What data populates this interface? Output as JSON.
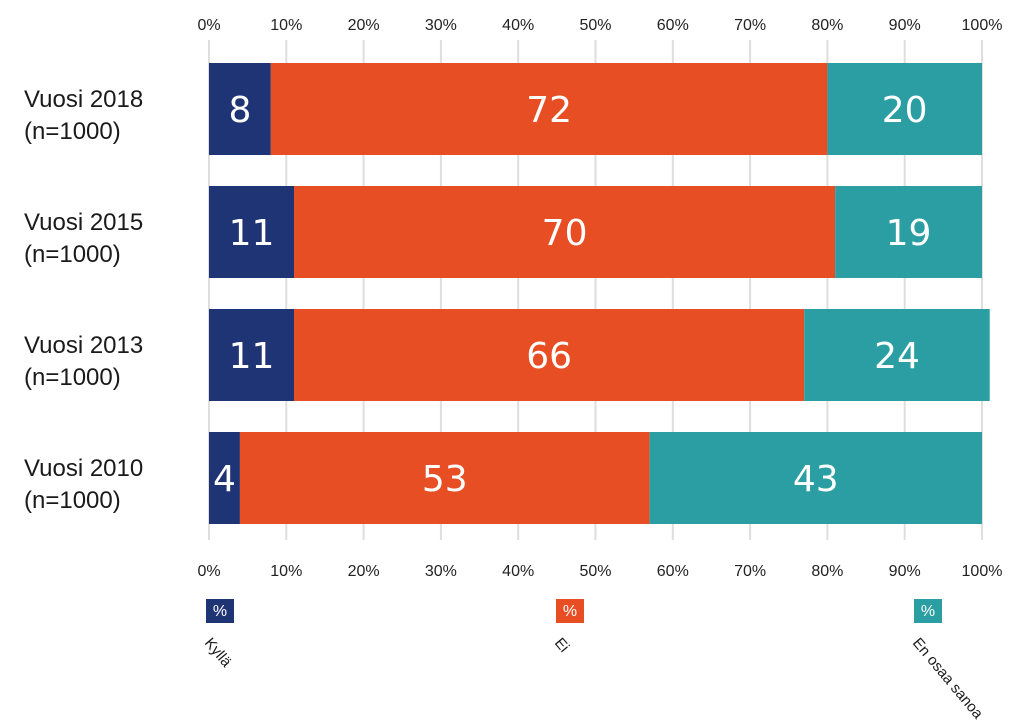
{
  "chart_data": {
    "type": "bar",
    "orientation": "horizontal",
    "stacked": true,
    "categories": [
      [
        "Vuosi 2018",
        "(n=1000)"
      ],
      [
        "Vuosi 2015",
        "(n=1000)"
      ],
      [
        "Vuosi 2013",
        "(n=1000)"
      ],
      [
        "Vuosi 2010",
        "(n=1000)"
      ]
    ],
    "series": [
      {
        "name": "Kyllä",
        "values": [
          8,
          11,
          11,
          4
        ],
        "color": "#1f3474"
      },
      {
        "name": "Ei",
        "values": [
          72,
          70,
          66,
          53
        ],
        "color": "#e84e24"
      },
      {
        "name": "En osaa sanoa",
        "values": [
          20,
          19,
          24,
          43
        ],
        "color": "#2a9ea3"
      }
    ],
    "xlim": [
      0,
      100
    ],
    "x_ticks": [
      "0%",
      "10%",
      "20%",
      "30%",
      "40%",
      "50%",
      "60%",
      "70%",
      "80%",
      "90%",
      "100%"
    ],
    "tick_axes": "top-and-bottom",
    "grid": true,
    "legend": {
      "placement": "bottom",
      "symbol_text": "%",
      "labels_rotated": true
    }
  }
}
